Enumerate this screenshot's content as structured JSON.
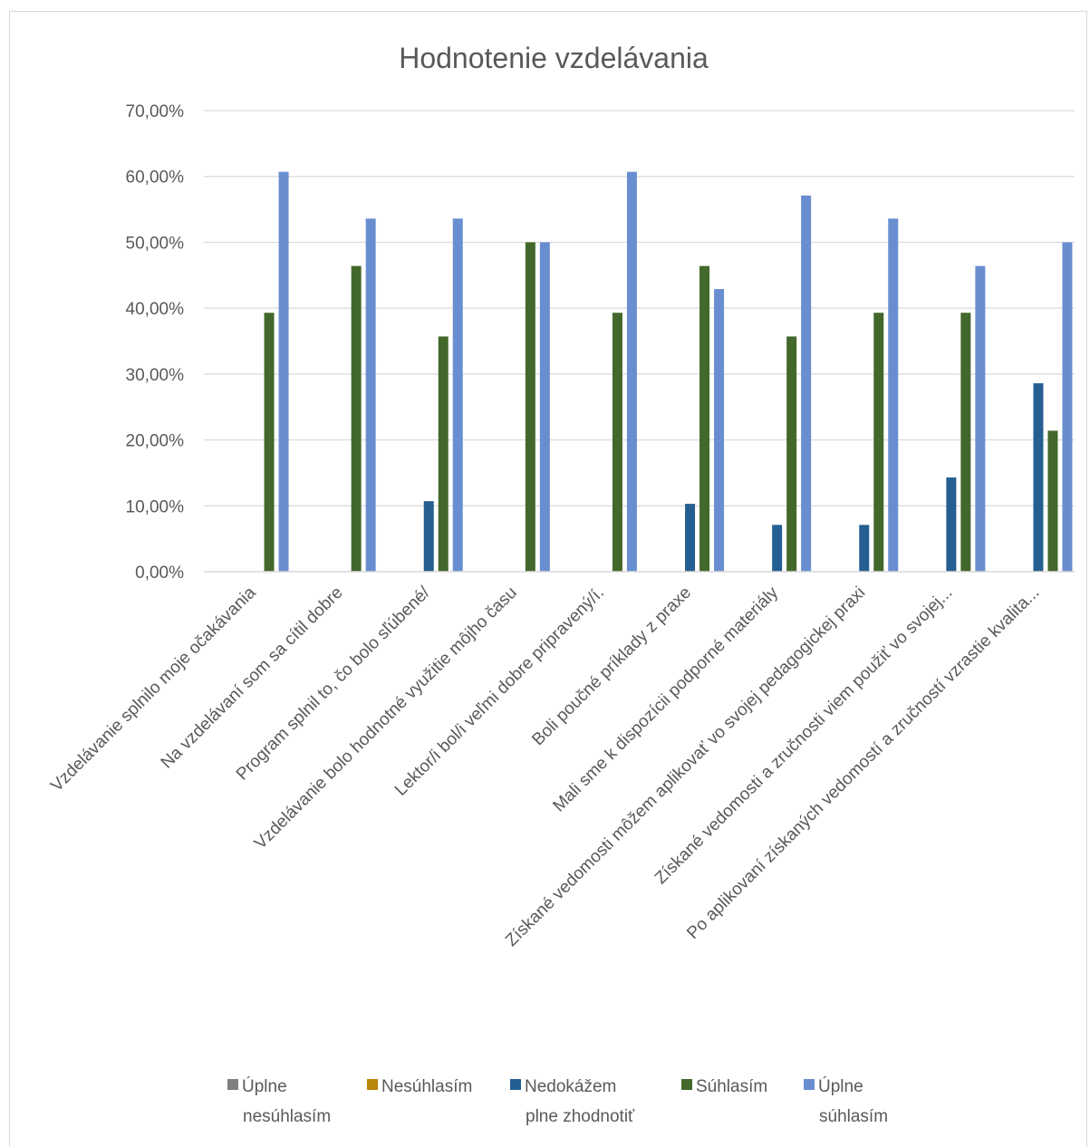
{
  "chart_data": {
    "type": "bar",
    "title": "Hodnotenie vzdelávania",
    "xlabel": "",
    "ylabel": "",
    "ylim": [
      0,
      0.7
    ],
    "y_ticks": [
      "0,00%",
      "10,00%",
      "20,00%",
      "30,00%",
      "40,00%",
      "50,00%",
      "60,00%",
      "70,00%"
    ],
    "grid": true,
    "legend_position": "bottom",
    "categories": [
      "Vzdelávanie splnilo moje očakávania",
      "Na vzdelávaní som sa cítil dobre",
      "Program splnil to, čo bolo sľúbené/",
      "Vzdelávanie bolo hodnotné využitie môjho času",
      "Lektor/i bol/i veľmi dobre pripravený/í.",
      "Boli poučné príklady z praxe",
      "Mali sme k dispozícii podporné materiály",
      "Získané vedomosti môžem aplikovať vo svojej pedagogickej praxi",
      "Získané vedomosti a zručnosti viem použiť vo svojej...",
      "Po aplikovaní získaných vedomostí a zručností vzrastie kvalita..."
    ],
    "series": [
      {
        "name": "Úplne nesúhlasím",
        "name_lines": [
          "Úplne",
          "nesúhlasím"
        ],
        "color": "#7f7f7f",
        "values": [
          0,
          0,
          0,
          0,
          0,
          0,
          0,
          0,
          0,
          0
        ]
      },
      {
        "name": "Nesúhlasím",
        "name_lines": [
          "Nesúhlasím"
        ],
        "color": "#b8860b",
        "values": [
          0,
          0,
          0,
          0,
          0,
          0,
          0,
          0,
          0,
          0
        ]
      },
      {
        "name": "Nedokážem plne zhodnotiť",
        "name_lines": [
          "Nedokážem",
          "plne zhodnotiť"
        ],
        "color": "#255e91",
        "values": [
          0,
          0,
          0.107,
          0,
          0,
          0.103,
          0.071,
          0.071,
          0.143,
          0.286
        ]
      },
      {
        "name": "Súhlasím",
        "name_lines": [
          "Súhlasím"
        ],
        "color": "#43682b",
        "values": [
          0.393,
          0.464,
          0.357,
          0.5,
          0.393,
          0.464,
          0.357,
          0.393,
          0.393,
          0.214
        ]
      },
      {
        "name": "Úplne súhlasím",
        "name_lines": [
          "Úplne",
          "súhlasím"
        ],
        "color": "#698ed0",
        "values": [
          0.607,
          0.536,
          0.536,
          0.5,
          0.607,
          0.429,
          0.571,
          0.536,
          0.464,
          0.5
        ]
      }
    ]
  }
}
